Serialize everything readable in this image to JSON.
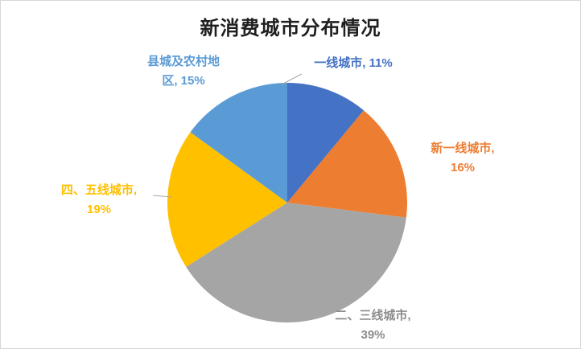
{
  "title": "新消费城市分布情况",
  "chart_data": {
    "type": "pie",
    "title": "新消费城市分布情况",
    "start_angle_deg": 0,
    "direction": "clockwise",
    "legend": "none",
    "label_format": "category, value%",
    "slices": [
      {
        "label": "一线城市",
        "value": 11,
        "color": "#4472C4",
        "label_color": "#4472C4",
        "label_text": "一线城市, 11%"
      },
      {
        "label": "新一线城市",
        "value": 16,
        "color": "#ED7D31",
        "label_color": "#ED7D31",
        "label_text": "新一线城市, 16%"
      },
      {
        "label": "二、三线城市",
        "value": 39,
        "color": "#A5A5A5",
        "label_color": "#8C8C8C",
        "label_text": "二、三线城市, 39%"
      },
      {
        "label": "四、五线城市",
        "value": 19,
        "color": "#FFC000",
        "label_color": "#FFC000",
        "label_text": "四、五线城市, 19%"
      },
      {
        "label": "县城及农村地区",
        "value": 15,
        "color": "#5B9BD5",
        "label_color": "#5B9BD5",
        "label_text": "县城及农村地区, 15%"
      }
    ]
  },
  "callouts": {
    "tier1": [
      "一线城市, 11%"
    ],
    "new_tier1": [
      "新一线城市,",
      "16%"
    ],
    "tier23": [
      "二、三线城市,",
      "39%"
    ],
    "tier45": [
      "四、五线城市,",
      "19%"
    ],
    "county": [
      "县城及农村地",
      "区, 15%"
    ]
  }
}
